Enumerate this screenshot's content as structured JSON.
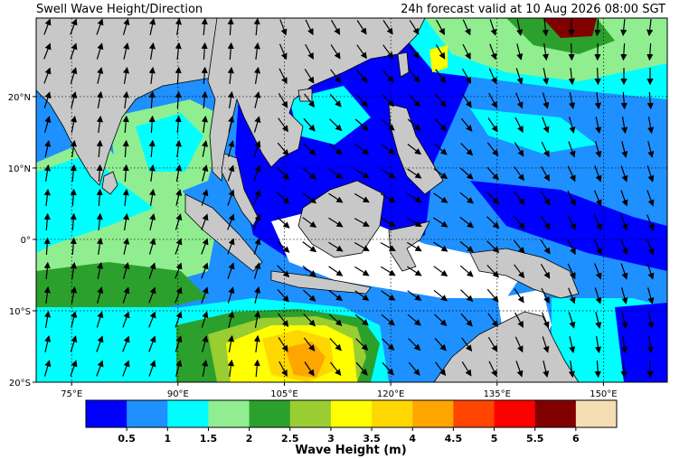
{
  "header": {
    "title_left": "Swell Wave Height/Direction",
    "title_right": "24h forecast valid at 10 Aug 2026 08:00 SGT"
  },
  "axes": {
    "lon_ticks": [
      {
        "lon": 75,
        "label": "75°E"
      },
      {
        "lon": 90,
        "label": "90°E"
      },
      {
        "lon": 105,
        "label": "105°E"
      },
      {
        "lon": 120,
        "label": "120°E"
      },
      {
        "lon": 135,
        "label": "135°E"
      },
      {
        "lon": 150,
        "label": "150°E"
      }
    ],
    "lat_ticks": [
      {
        "lat": 20,
        "label": "20°N"
      },
      {
        "lat": 10,
        "label": "10°N"
      },
      {
        "lat": 0,
        "label": "0°"
      },
      {
        "lat": -10,
        "label": "10°S"
      },
      {
        "lat": -20,
        "label": "20°S"
      }
    ],
    "lon_range": [
      70,
      159
    ],
    "lat_range": [
      -20,
      31
    ],
    "grid": "dotted"
  },
  "colors": {
    "land": "#c8c8c8",
    "levels": [
      {
        "label": "0.5",
        "color": "#0000ff"
      },
      {
        "label": "1",
        "color": "#1e90ff"
      },
      {
        "label": "1.5",
        "color": "#00ffff"
      },
      {
        "label": "2",
        "color": "#90ee90"
      },
      {
        "label": "2.5",
        "color": "#2ca02c"
      },
      {
        "label": "3",
        "color": "#9acd32"
      },
      {
        "label": "3.5",
        "color": "#ffff00"
      },
      {
        "label": "4",
        "color": "#ffd700"
      },
      {
        "label": "4.5",
        "color": "#ffa500"
      },
      {
        "label": "5",
        "color": "#ff4500"
      },
      {
        "label": "5.5",
        "color": "#ff0000"
      },
      {
        "label": "6",
        "color": "#800000"
      },
      {
        "label": "",
        "color": "#f5deb3"
      }
    ]
  },
  "colorbar": {
    "title": "Wave Height (m)"
  }
}
